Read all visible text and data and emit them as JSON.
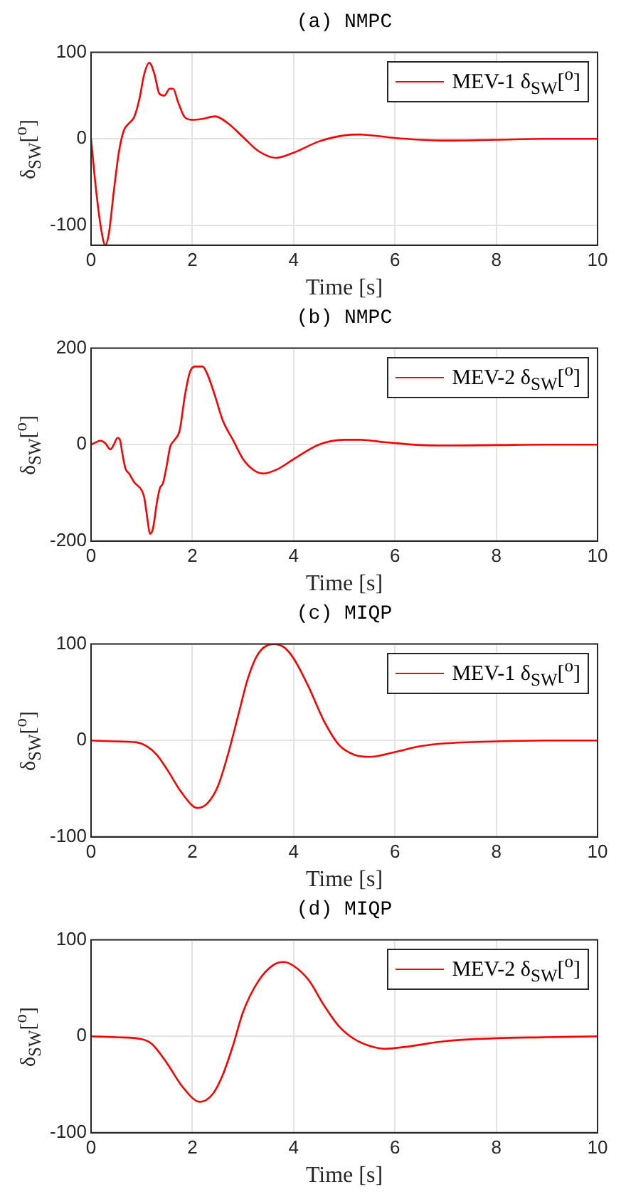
{
  "chart_data": [
    {
      "type": "line",
      "title": "(a) NMPC",
      "xlabel": "Time [s]",
      "ylabel": "δ$_{SW}$[$^{o}$]",
      "xlim": [
        0,
        10
      ],
      "xticks": [
        0,
        2,
        4,
        6,
        8,
        10
      ],
      "ylim": [
        -123,
        100
      ],
      "yticks": [
        -100,
        0,
        100
      ],
      "grid": true,
      "legend": "top right",
      "marker": "none",
      "line_style": "solid",
      "x": [
        0,
        0.1,
        0.2,
        0.28,
        0.35,
        0.45,
        0.55,
        0.65,
        0.75,
        0.85,
        0.95,
        1.05,
        1.15,
        1.25,
        1.35,
        1.45,
        1.55,
        1.62,
        1.72,
        1.85,
        2.0,
        2.2,
        2.45,
        2.7,
        3.0,
        3.3,
        3.65,
        4.0,
        4.5,
        5.0,
        5.3,
        5.7,
        6.0,
        6.5,
        7.0,
        8.0,
        9.0,
        10.0
      ],
      "series": [
        {
          "name": "MEV-1 δ$_{SW}$[$^{o}$]",
          "color": "#ff0000",
          "values": [
            0,
            -60,
            -105,
            -123,
            -110,
            -60,
            -15,
            10,
            18,
            25,
            45,
            75,
            88,
            75,
            52,
            50,
            58,
            58,
            42,
            25,
            22,
            23,
            26,
            18,
            2,
            -14,
            -22,
            -16,
            -3,
            4,
            5,
            3,
            1,
            -1,
            -2,
            -1,
            0,
            0
          ]
        }
      ]
    },
    {
      "type": "line",
      "title": "(b) NMPC",
      "xlabel": "Time [s]",
      "ylabel": "δ$_{SW}$[$^{o}$]",
      "xlim": [
        0,
        10
      ],
      "xticks": [
        0,
        2,
        4,
        6,
        8,
        10
      ],
      "ylim": [
        -200,
        200
      ],
      "yticks": [
        -200,
        0,
        200
      ],
      "grid": true,
      "legend": "top right",
      "marker": "none",
      "line_style": "solid",
      "x": [
        0,
        0.1,
        0.18,
        0.28,
        0.38,
        0.45,
        0.52,
        0.57,
        0.62,
        0.68,
        0.75,
        0.85,
        1.0,
        1.05,
        1.12,
        1.16,
        1.22,
        1.3,
        1.36,
        1.42,
        1.5,
        1.56,
        1.65,
        1.75,
        1.85,
        1.95,
        2.05,
        2.2,
        2.3,
        2.45,
        2.6,
        2.8,
        3.0,
        3.2,
        3.4,
        3.7,
        4.0,
        4.5,
        5.0,
        5.3,
        5.8,
        6.5,
        7.0,
        8.0,
        9.0,
        10.0
      ],
      "series": [
        {
          "name": "MEV-2 δ$_{SW}$[$^{o}$]",
          "color": "#ff0000",
          "values": [
            0,
            5,
            8,
            3,
            -10,
            0,
            14,
            10,
            -20,
            -50,
            -60,
            -78,
            -95,
            -110,
            -160,
            -185,
            -175,
            -120,
            -90,
            -80,
            -40,
            -5,
            10,
            30,
            100,
            150,
            162,
            162,
            145,
            100,
            50,
            10,
            -30,
            -52,
            -60,
            -50,
            -30,
            0,
            10,
            10,
            5,
            -1,
            -2,
            -1,
            0,
            0
          ]
        }
      ]
    },
    {
      "type": "line",
      "title": "(c) MIQP",
      "xlabel": "Time [s]",
      "ylabel": "δ$_{SW}$[$^{o}$]",
      "xlim": [
        0,
        10
      ],
      "xticks": [
        0,
        2,
        4,
        6,
        8,
        10
      ],
      "ylim": [
        -100,
        100
      ],
      "yticks": [
        -100,
        0,
        100
      ],
      "grid": true,
      "legend": "top right",
      "marker": "none",
      "line_style": "solid",
      "x": [
        0,
        0.5,
        0.9,
        1.1,
        1.3,
        1.5,
        1.8,
        2.1,
        2.3,
        2.5,
        2.7,
        2.9,
        3.1,
        3.3,
        3.6,
        3.8,
        4.0,
        4.3,
        4.6,
        4.9,
        5.2,
        5.5,
        6.0,
        6.5,
        7.0,
        8.0,
        9.0,
        10.0
      ],
      "series": [
        {
          "name": "MEV-1 δ$_{SW}$[$^{o}$]",
          "color": "#ff0000",
          "values": [
            0,
            -1,
            -2,
            -6,
            -15,
            -30,
            -55,
            -70,
            -65,
            -48,
            -15,
            25,
            65,
            90,
            100,
            97,
            85,
            55,
            20,
            -5,
            -15,
            -17,
            -12,
            -6,
            -3,
            -1,
            0,
            0
          ]
        }
      ]
    },
    {
      "type": "line",
      "title": "(d) MIQP",
      "xlabel": "Time [s]",
      "ylabel": "δ$_{SW}$[$^{o}$]",
      "xlim": [
        0,
        10
      ],
      "xticks": [
        0,
        2,
        4,
        6,
        8,
        10
      ],
      "ylim": [
        -100,
        100
      ],
      "yticks": [
        -100,
        0,
        100
      ],
      "grid": true,
      "legend": "top right",
      "marker": "none",
      "line_style": "solid",
      "x": [
        0,
        0.5,
        1.0,
        1.2,
        1.5,
        1.8,
        2.15,
        2.4,
        2.6,
        2.8,
        3.0,
        3.3,
        3.6,
        3.8,
        4.0,
        4.3,
        4.6,
        4.9,
        5.2,
        5.5,
        5.8,
        6.2,
        7.0,
        8.0,
        9.0,
        10.0
      ],
      "series": [
        {
          "name": "MEV-2 δ$_{SW}$[$^{o}$]",
          "color": "#ff0000",
          "values": [
            0,
            -1,
            -3,
            -8,
            -28,
            -52,
            -68,
            -60,
            -40,
            -10,
            25,
            57,
            74,
            77,
            73,
            58,
            32,
            10,
            -3,
            -10,
            -13,
            -11,
            -5,
            -2,
            -1,
            0
          ]
        }
      ]
    }
  ]
}
